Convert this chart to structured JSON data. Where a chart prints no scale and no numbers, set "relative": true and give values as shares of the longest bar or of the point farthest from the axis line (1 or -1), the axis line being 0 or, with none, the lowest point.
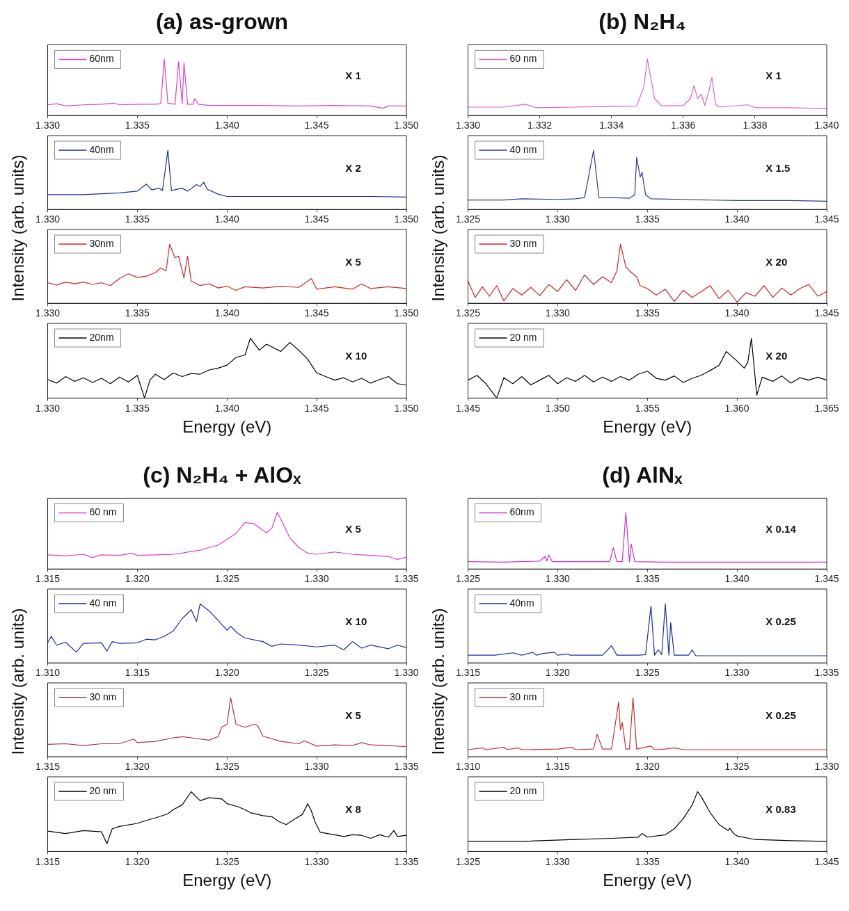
{
  "chart_data": [
    {
      "type": "line",
      "title": "(a) as-grown",
      "relative": true,
      "legend": "top left",
      "tick_labels": "x",
      "annotations": [
        "X 1"
      ],
      "xlim": [
        1.33,
        1.35
      ],
      "xticks": [
        {
          "value": 1.33,
          "label": "1.330"
        },
        {
          "value": 1.335,
          "label": "1.335"
        },
        {
          "value": 1.34,
          "label": "1.340"
        },
        {
          "value": 1.345,
          "label": "1.345"
        },
        {
          "value": 1.35,
          "label": "1.350"
        }
      ],
      "series": [
        {
          "name": "60nm",
          "color": "#e040d0",
          "x": [
            1.33,
            1.3305,
            1.331,
            1.332,
            1.333,
            1.3337,
            1.334,
            1.335,
            1.336,
            1.3363,
            1.3365,
            1.3367,
            1.3371,
            1.3373,
            1.3375,
            1.3376,
            1.3378,
            1.3381,
            1.3382,
            1.3384,
            1.339,
            1.34,
            1.342,
            1.344,
            1.346,
            1.348,
            1.3487,
            1.349,
            1.35
          ],
          "values": [
            0.19,
            0.21,
            0.17,
            0.19,
            0.2,
            0.22,
            0.19,
            0.2,
            0.2,
            0.21,
            1.0,
            0.22,
            0.2,
            0.95,
            0.21,
            0.93,
            0.2,
            0.2,
            0.3,
            0.2,
            0.18,
            0.18,
            0.18,
            0.17,
            0.18,
            0.17,
            0.13,
            0.17,
            0.17
          ]
        }
      ]
    },
    {
      "type": "line",
      "ylabel": "Intensity (arb. units)",
      "relative": true,
      "legend": "top left",
      "tick_labels": "x",
      "annotations": [
        "X 2"
      ],
      "xlim": [
        1.33,
        1.35
      ],
      "xticks": [
        {
          "value": 1.33,
          "label": "1.330"
        },
        {
          "value": 1.335,
          "label": "1.335"
        },
        {
          "value": 1.34,
          "label": "1.340"
        },
        {
          "value": 1.345,
          "label": "1.345"
        },
        {
          "value": 1.35,
          "label": "1.350"
        }
      ],
      "series": [
        {
          "name": "40nm",
          "color": "#1c2a9c",
          "x": [
            1.33,
            1.332,
            1.334,
            1.335,
            1.3355,
            1.3358,
            1.3362,
            1.3364,
            1.3367,
            1.3369,
            1.3375,
            1.3378,
            1.3383,
            1.3385,
            1.3387,
            1.3389,
            1.3395,
            1.34,
            1.342,
            1.345,
            1.348,
            1.35
          ],
          "values": [
            0.25,
            0.25,
            0.28,
            0.31,
            0.43,
            0.33,
            0.36,
            0.32,
            1.0,
            0.32,
            0.36,
            0.31,
            0.42,
            0.39,
            0.46,
            0.34,
            0.26,
            0.22,
            0.22,
            0.22,
            0.22,
            0.21
          ]
        }
      ]
    },
    {
      "type": "line",
      "relative": true,
      "legend": "top left",
      "tick_labels": "x",
      "annotations": [
        "X 5"
      ],
      "xlim": [
        1.33,
        1.35
      ],
      "xticks": [
        {
          "value": 1.33,
          "label": "1.330"
        },
        {
          "value": 1.335,
          "label": "1.335"
        },
        {
          "value": 1.34,
          "label": "1.340"
        },
        {
          "value": 1.345,
          "label": "1.345"
        },
        {
          "value": 1.35,
          "label": "1.350"
        }
      ],
      "series": [
        {
          "name": "30nm",
          "color": "#d02828",
          "x": [
            1.33,
            1.3305,
            1.331,
            1.3315,
            1.332,
            1.3325,
            1.333,
            1.3335,
            1.334,
            1.3345,
            1.335,
            1.3355,
            1.336,
            1.3363,
            1.3366,
            1.3368,
            1.3371,
            1.3373,
            1.3375,
            1.3376,
            1.3378,
            1.338,
            1.3385,
            1.339,
            1.3395,
            1.34,
            1.3405,
            1.341,
            1.342,
            1.343,
            1.344,
            1.3447,
            1.345,
            1.346,
            1.347,
            1.3475,
            1.348,
            1.349,
            1.35
          ],
          "values": [
            0.35,
            0.31,
            0.36,
            0.33,
            0.36,
            0.32,
            0.35,
            0.3,
            0.42,
            0.5,
            0.44,
            0.46,
            0.52,
            0.6,
            0.55,
            1.0,
            0.77,
            0.8,
            0.55,
            0.43,
            0.8,
            0.38,
            0.3,
            0.33,
            0.26,
            0.29,
            0.22,
            0.28,
            0.26,
            0.29,
            0.27,
            0.42,
            0.24,
            0.28,
            0.24,
            0.33,
            0.25,
            0.28,
            0.25
          ]
        }
      ]
    },
    {
      "type": "line",
      "xlabel": "Energy (eV)",
      "relative": true,
      "legend": "top left",
      "tick_labels": "x",
      "annotations": [
        "X 10"
      ],
      "xlim": [
        1.33,
        1.35
      ],
      "xticks": [
        {
          "value": 1.33,
          "label": "1.330"
        },
        {
          "value": 1.335,
          "label": "1.335"
        },
        {
          "value": 1.34,
          "label": "1.340"
        },
        {
          "value": 1.345,
          "label": "1.345"
        },
        {
          "value": 1.35,
          "label": "1.350"
        }
      ],
      "series": [
        {
          "name": "20nm",
          "color": "#000000",
          "x": [
            1.33,
            1.3305,
            1.331,
            1.3315,
            1.332,
            1.3325,
            1.333,
            1.3335,
            1.334,
            1.3345,
            1.335,
            1.3354,
            1.3357,
            1.336,
            1.3365,
            1.337,
            1.3375,
            1.338,
            1.3385,
            1.339,
            1.3395,
            1.34,
            1.3405,
            1.341,
            1.3413,
            1.3418,
            1.3422,
            1.343,
            1.3435,
            1.344,
            1.3445,
            1.345,
            1.3455,
            1.346,
            1.3465,
            1.347,
            1.3475,
            1.348,
            1.3485,
            1.349,
            1.3495,
            1.35
          ],
          "values": [
            0.31,
            0.25,
            0.36,
            0.28,
            0.34,
            0.26,
            0.33,
            0.24,
            0.35,
            0.27,
            0.38,
            0.0,
            0.3,
            0.4,
            0.31,
            0.42,
            0.36,
            0.41,
            0.4,
            0.47,
            0.5,
            0.55,
            0.68,
            0.72,
            1.0,
            0.8,
            0.9,
            0.78,
            0.93,
            0.8,
            0.65,
            0.42,
            0.36,
            0.3,
            0.34,
            0.27,
            0.33,
            0.25,
            0.31,
            0.36,
            0.24,
            0.22
          ]
        }
      ]
    },
    {
      "type": "line",
      "title": "(b) N₂H₄",
      "relative": true,
      "legend": "top left",
      "tick_labels": "x",
      "annotations": [
        "X 1"
      ],
      "xlim": [
        1.33,
        1.34
      ],
      "xticks": [
        {
          "value": 1.33,
          "label": "1.330"
        },
        {
          "value": 1.332,
          "label": "1.332"
        },
        {
          "value": 1.334,
          "label": "1.334"
        },
        {
          "value": 1.336,
          "label": "1.336"
        },
        {
          "value": 1.338,
          "label": "1.338"
        },
        {
          "value": 1.34,
          "label": "1.340"
        }
      ],
      "series": [
        {
          "name": "60 nm",
          "color": "#e060c8",
          "x": [
            1.33,
            1.331,
            1.3316,
            1.3319,
            1.333,
            1.334,
            1.3347,
            1.3349,
            1.335,
            1.3352,
            1.3354,
            1.336,
            1.3362,
            1.3363,
            1.3364,
            1.3365,
            1.3366,
            1.3367,
            1.3368,
            1.3369,
            1.337,
            1.3378,
            1.338,
            1.339,
            1.34
          ],
          "values": [
            0.15,
            0.15,
            0.2,
            0.14,
            0.15,
            0.16,
            0.17,
            0.5,
            1.0,
            0.3,
            0.17,
            0.18,
            0.3,
            0.53,
            0.3,
            0.38,
            0.18,
            0.4,
            0.67,
            0.2,
            0.15,
            0.19,
            0.14,
            0.14,
            0.12
          ]
        }
      ]
    },
    {
      "type": "line",
      "ylabel": "Intensity (arb. units)",
      "relative": true,
      "legend": "top left",
      "tick_labels": "x",
      "annotations": [
        "X 1.5"
      ],
      "xlim": [
        1.325,
        1.345
      ],
      "xticks": [
        {
          "value": 1.325,
          "label": "1.325"
        },
        {
          "value": 1.33,
          "label": "1.330"
        },
        {
          "value": 1.335,
          "label": "1.335"
        },
        {
          "value": 1.34,
          "label": "1.340"
        },
        {
          "value": 1.345,
          "label": "1.345"
        }
      ],
      "series": [
        {
          "name": "40 nm",
          "color": "#2a3a8c",
          "x": [
            1.325,
            1.327,
            1.328,
            1.33,
            1.331,
            1.3315,
            1.332,
            1.3323,
            1.333,
            1.334,
            1.3343,
            1.3344,
            1.3346,
            1.3347,
            1.3349,
            1.3352,
            1.337,
            1.34,
            1.343,
            1.345
          ],
          "values": [
            0.16,
            0.16,
            0.18,
            0.17,
            0.18,
            0.2,
            1.0,
            0.2,
            0.2,
            0.19,
            0.25,
            0.88,
            0.55,
            0.63,
            0.25,
            0.18,
            0.17,
            0.15,
            0.15,
            0.14
          ]
        }
      ]
    },
    {
      "type": "line",
      "relative": true,
      "legend": "top left",
      "tick_labels": "x",
      "annotations": [
        "X 20"
      ],
      "xlim": [
        1.325,
        1.345
      ],
      "xticks": [
        {
          "value": 1.325,
          "label": "1.325"
        },
        {
          "value": 1.33,
          "label": "1.330"
        },
        {
          "value": 1.335,
          "label": "1.335"
        },
        {
          "value": 1.34,
          "label": "1.340"
        },
        {
          "value": 1.345,
          "label": "1.345"
        }
      ],
      "series": [
        {
          "name": "30 nm",
          "color": "#d42020",
          "x": [
            1.325,
            1.3254,
            1.3258,
            1.3262,
            1.3266,
            1.327,
            1.3275,
            1.328,
            1.3285,
            1.329,
            1.3295,
            1.33,
            1.3305,
            1.331,
            1.3315,
            1.332,
            1.3325,
            1.333,
            1.3333,
            1.3335,
            1.3338,
            1.334,
            1.3344,
            1.3346,
            1.335,
            1.3355,
            1.336,
            1.3365,
            1.337,
            1.3375,
            1.338,
            1.3385,
            1.339,
            1.3395,
            1.34,
            1.3405,
            1.341,
            1.3415,
            1.342,
            1.3425,
            1.343,
            1.3435,
            1.344,
            1.3445,
            1.345
          ],
          "values": [
            0.38,
            0.1,
            0.28,
            0.12,
            0.3,
            0.04,
            0.25,
            0.14,
            0.27,
            0.13,
            0.32,
            0.2,
            0.4,
            0.22,
            0.48,
            0.32,
            0.45,
            0.35,
            0.55,
            1.0,
            0.62,
            0.55,
            0.45,
            0.3,
            0.25,
            0.14,
            0.24,
            0.03,
            0.22,
            0.1,
            0.2,
            0.3,
            0.08,
            0.22,
            0.02,
            0.18,
            0.12,
            0.3,
            0.1,
            0.26,
            0.14,
            0.25,
            0.32,
            0.12,
            0.2
          ]
        }
      ]
    },
    {
      "type": "line",
      "xlabel": "Energy (eV)",
      "relative": true,
      "legend": "top left",
      "tick_labels": "x",
      "annotations": [
        "X 20"
      ],
      "xlim": [
        1.345,
        1.365
      ],
      "xticks": [
        {
          "value": 1.345,
          "label": "1.345"
        },
        {
          "value": 1.35,
          "label": "1.350"
        },
        {
          "value": 1.355,
          "label": "1.355"
        },
        {
          "value": 1.36,
          "label": "1.360"
        },
        {
          "value": 1.365,
          "label": "1.365"
        }
      ],
      "series": [
        {
          "name": "20 nm",
          "color": "#000000",
          "x": [
            1.345,
            1.3455,
            1.346,
            1.3466,
            1.347,
            1.3475,
            1.348,
            1.3485,
            1.349,
            1.3495,
            1.35,
            1.3505,
            1.351,
            1.3515,
            1.352,
            1.3525,
            1.353,
            1.3535,
            1.354,
            1.3545,
            1.355,
            1.3555,
            1.356,
            1.3565,
            1.357,
            1.3575,
            1.358,
            1.3585,
            1.359,
            1.3594,
            1.36,
            1.3604,
            1.3606,
            1.3608,
            1.3611,
            1.3614,
            1.362,
            1.3625,
            1.363,
            1.3635,
            1.364,
            1.3645,
            1.365
          ],
          "values": [
            0.3,
            0.38,
            0.24,
            0.0,
            0.34,
            0.24,
            0.36,
            0.22,
            0.3,
            0.38,
            0.24,
            0.34,
            0.28,
            0.38,
            0.27,
            0.35,
            0.28,
            0.36,
            0.3,
            0.4,
            0.45,
            0.33,
            0.3,
            0.37,
            0.26,
            0.33,
            0.38,
            0.46,
            0.55,
            0.78,
            0.62,
            0.5,
            0.6,
            1.0,
            0.05,
            0.35,
            0.28,
            0.37,
            0.25,
            0.34,
            0.3,
            0.35,
            0.3
          ]
        }
      ]
    },
    {
      "type": "line",
      "title": "(c) N₂H₄ + AlOₓ",
      "relative": true,
      "legend": "top left",
      "tick_labels": "x",
      "annotations": [
        "X 5"
      ],
      "xlim": [
        1.315,
        1.335
      ],
      "xticks": [
        {
          "value": 1.315,
          "label": "1.315"
        },
        {
          "value": 1.32,
          "label": "1.320"
        },
        {
          "value": 1.325,
          "label": "1.325"
        },
        {
          "value": 1.33,
          "label": "1.330"
        },
        {
          "value": 1.335,
          "label": "1.335"
        }
      ],
      "series": [
        {
          "name": "60 nm",
          "color": "#e040c8",
          "x": [
            1.315,
            1.316,
            1.317,
            1.3175,
            1.318,
            1.319,
            1.3197,
            1.32,
            1.321,
            1.322,
            1.3225,
            1.323,
            1.3235,
            1.324,
            1.3245,
            1.325,
            1.3255,
            1.326,
            1.3265,
            1.327,
            1.3272,
            1.3275,
            1.3278,
            1.328,
            1.3285,
            1.329,
            1.3295,
            1.33,
            1.331,
            1.332,
            1.333,
            1.334,
            1.3345,
            1.335
          ],
          "values": [
            0.25,
            0.23,
            0.26,
            0.2,
            0.25,
            0.24,
            0.28,
            0.24,
            0.25,
            0.26,
            0.28,
            0.31,
            0.33,
            0.38,
            0.42,
            0.52,
            0.63,
            0.82,
            0.8,
            0.68,
            0.64,
            0.72,
            1.0,
            0.88,
            0.55,
            0.38,
            0.28,
            0.26,
            0.3,
            0.26,
            0.24,
            0.22,
            0.17,
            0.21
          ]
        }
      ]
    },
    {
      "type": "line",
      "ylabel": "Intensity (arb. units)",
      "relative": true,
      "legend": "top left",
      "tick_labels": "x",
      "annotations": [
        "X 10"
      ],
      "xlim": [
        1.31,
        1.33
      ],
      "xticks": [
        {
          "value": 1.31,
          "label": "1.310"
        },
        {
          "value": 1.315,
          "label": "1.315"
        },
        {
          "value": 1.32,
          "label": "1.320"
        },
        {
          "value": 1.325,
          "label": "1.325"
        },
        {
          "value": 1.33,
          "label": "1.330"
        }
      ],
      "series": [
        {
          "name": "40 nm",
          "color": "#1c2aa8",
          "x": [
            1.31,
            1.3102,
            1.3105,
            1.311,
            1.3116,
            1.312,
            1.313,
            1.3133,
            1.3136,
            1.314,
            1.315,
            1.3155,
            1.316,
            1.3165,
            1.317,
            1.3175,
            1.318,
            1.3183,
            1.3185,
            1.319,
            1.3195,
            1.32,
            1.3202,
            1.3206,
            1.321,
            1.322,
            1.3225,
            1.323,
            1.324,
            1.325,
            1.326,
            1.3265,
            1.327,
            1.3275,
            1.328,
            1.329,
            1.3295,
            1.33
          ],
          "values": [
            0.34,
            0.45,
            0.3,
            0.35,
            0.18,
            0.33,
            0.34,
            0.2,
            0.36,
            0.33,
            0.34,
            0.4,
            0.39,
            0.45,
            0.54,
            0.75,
            0.9,
            0.7,
            1.0,
            0.88,
            0.72,
            0.55,
            0.62,
            0.5,
            0.42,
            0.36,
            0.28,
            0.32,
            0.3,
            0.27,
            0.3,
            0.22,
            0.36,
            0.25,
            0.3,
            0.24,
            0.3,
            0.26
          ]
        }
      ]
    },
    {
      "type": "line",
      "relative": true,
      "legend": "top left",
      "tick_labels": "x",
      "annotations": [
        "X 5"
      ],
      "xlim": [
        1.315,
        1.335
      ],
      "xticks": [
        {
          "value": 1.315,
          "label": "1.315"
        },
        {
          "value": 1.32,
          "label": "1.320"
        },
        {
          "value": 1.325,
          "label": "1.325"
        },
        {
          "value": 1.33,
          "label": "1.330"
        },
        {
          "value": 1.335,
          "label": "1.335"
        }
      ],
      "series": [
        {
          "name": "30 nm",
          "color": "#b03050",
          "x": [
            1.315,
            1.316,
            1.317,
            1.318,
            1.319,
            1.3198,
            1.32,
            1.321,
            1.322,
            1.3225,
            1.323,
            1.324,
            1.3245,
            1.3247,
            1.325,
            1.3252,
            1.3255,
            1.326,
            1.3265,
            1.3267,
            1.327,
            1.328,
            1.329,
            1.3293,
            1.33,
            1.331,
            1.332,
            1.3325,
            1.333,
            1.334,
            1.335
          ],
          "values": [
            0.21,
            0.22,
            0.19,
            0.22,
            0.22,
            0.3,
            0.24,
            0.26,
            0.32,
            0.34,
            0.32,
            0.28,
            0.34,
            0.5,
            0.55,
            1.0,
            0.55,
            0.5,
            0.55,
            0.53,
            0.35,
            0.26,
            0.22,
            0.27,
            0.18,
            0.2,
            0.19,
            0.24,
            0.2,
            0.19,
            0.17
          ]
        }
      ]
    },
    {
      "type": "line",
      "xlabel": "Energy (eV)",
      "relative": true,
      "legend": "top left",
      "tick_labels": "x",
      "annotations": [
        "X 8"
      ],
      "xlim": [
        1.315,
        1.335
      ],
      "xticks": [
        {
          "value": 1.315,
          "label": "1.315"
        },
        {
          "value": 1.32,
          "label": "1.320"
        },
        {
          "value": 1.325,
          "label": "1.325"
        },
        {
          "value": 1.33,
          "label": "1.330"
        },
        {
          "value": 1.335,
          "label": "1.335"
        }
      ],
      "series": [
        {
          "name": "20 nm",
          "color": "#000000",
          "x": [
            1.315,
            1.316,
            1.317,
            1.318,
            1.3183,
            1.3186,
            1.319,
            1.32,
            1.3205,
            1.321,
            1.3217,
            1.322,
            1.3225,
            1.323,
            1.3235,
            1.324,
            1.3247,
            1.325,
            1.3256,
            1.326,
            1.3263,
            1.327,
            1.3275,
            1.3279,
            1.3283,
            1.3288,
            1.3292,
            1.3295,
            1.3297,
            1.3299,
            1.3302,
            1.331,
            1.3315,
            1.332,
            1.3325,
            1.333,
            1.3335,
            1.334,
            1.3343,
            1.3345,
            1.335
          ],
          "values": [
            0.34,
            0.3,
            0.35,
            0.33,
            0.13,
            0.38,
            0.42,
            0.47,
            0.52,
            0.56,
            0.63,
            0.7,
            0.78,
            1.0,
            0.85,
            0.9,
            0.88,
            0.8,
            0.75,
            0.7,
            0.65,
            0.6,
            0.58,
            0.5,
            0.45,
            0.55,
            0.62,
            0.8,
            0.68,
            0.5,
            0.32,
            0.28,
            0.25,
            0.28,
            0.27,
            0.22,
            0.28,
            0.24,
            0.35,
            0.25,
            0.27
          ]
        }
      ]
    },
    {
      "type": "line",
      "title": "(d) AlNₓ",
      "relative": true,
      "legend": "top left",
      "tick_labels": "x",
      "annotations": [
        "X 0.14"
      ],
      "xlim": [
        1.325,
        1.345
      ],
      "xticks": [
        {
          "value": 1.325,
          "label": "1.325"
        },
        {
          "value": 1.33,
          "label": "1.330"
        },
        {
          "value": 1.335,
          "label": "1.335"
        },
        {
          "value": 1.34,
          "label": "1.340"
        },
        {
          "value": 1.345,
          "label": "1.345"
        }
      ],
      "series": [
        {
          "name": "60nm",
          "color": "#d030d0",
          "x": [
            1.325,
            1.327,
            1.329,
            1.3293,
            1.3294,
            1.3295,
            1.3297,
            1.331,
            1.3329,
            1.3331,
            1.3333,
            1.3336,
            1.3338,
            1.334,
            1.3341,
            1.3343,
            1.336,
            1.34,
            1.345
          ],
          "values": [
            0.13,
            0.12,
            0.14,
            0.22,
            0.14,
            0.25,
            0.13,
            0.13,
            0.13,
            0.38,
            0.13,
            0.13,
            1.0,
            0.13,
            0.44,
            0.13,
            0.12,
            0.12,
            0.12
          ]
        }
      ]
    },
    {
      "type": "line",
      "ylabel": "Intensity (arb. units)",
      "relative": true,
      "legend": "top left",
      "tick_labels": "x",
      "annotations": [
        "X 0.25"
      ],
      "xlim": [
        1.315,
        1.335
      ],
      "xticks": [
        {
          "value": 1.315,
          "label": "1.315"
        },
        {
          "value": 1.32,
          "label": "1.320"
        },
        {
          "value": 1.325,
          "label": "1.325"
        },
        {
          "value": 1.33,
          "label": "1.330"
        },
        {
          "value": 1.335,
          "label": "1.335"
        }
      ],
      "series": [
        {
          "name": "40nm",
          "color": "#1c2aa8",
          "x": [
            1.315,
            1.3165,
            1.3175,
            1.318,
            1.3186,
            1.3188,
            1.3192,
            1.3198,
            1.32,
            1.3205,
            1.3207,
            1.3225,
            1.323,
            1.3233,
            1.3245,
            1.3249,
            1.3252,
            1.3254,
            1.3256,
            1.3258,
            1.326,
            1.3262,
            1.3263,
            1.3265,
            1.3273,
            1.3275,
            1.3277,
            1.33,
            1.333,
            1.335
          ],
          "values": [
            0.13,
            0.13,
            0.17,
            0.13,
            0.18,
            0.13,
            0.16,
            0.18,
            0.13,
            0.15,
            0.13,
            0.13,
            0.29,
            0.13,
            0.13,
            0.14,
            0.96,
            0.13,
            0.22,
            0.14,
            1.0,
            0.13,
            0.68,
            0.13,
            0.13,
            0.22,
            0.12,
            0.12,
            0.12,
            0.12
          ]
        }
      ]
    },
    {
      "type": "line",
      "relative": true,
      "legend": "top left",
      "tick_labels": "x",
      "annotations": [
        "X 0.25"
      ],
      "xlim": [
        1.31,
        1.33
      ],
      "xticks": [
        {
          "value": 1.31,
          "label": "1.310"
        },
        {
          "value": 1.315,
          "label": "1.315"
        },
        {
          "value": 1.32,
          "label": "1.320"
        },
        {
          "value": 1.325,
          "label": "1.325"
        },
        {
          "value": 1.33,
          "label": "1.330"
        }
      ],
      "series": [
        {
          "name": "30 nm",
          "color": "#c83030",
          "x": [
            1.31,
            1.3108,
            1.311,
            1.312,
            1.3122,
            1.3128,
            1.313,
            1.315,
            1.3158,
            1.316,
            1.317,
            1.3172,
            1.3175,
            1.318,
            1.3184,
            1.3185,
            1.3186,
            1.3188,
            1.319,
            1.3192,
            1.3194,
            1.3202,
            1.3204,
            1.321,
            1.3215,
            1.322,
            1.325,
            1.33
          ],
          "values": [
            0.12,
            0.15,
            0.12,
            0.16,
            0.12,
            0.15,
            0.12,
            0.13,
            0.16,
            0.12,
            0.13,
            0.38,
            0.13,
            0.13,
            0.93,
            0.45,
            0.58,
            0.13,
            0.13,
            1.0,
            0.13,
            0.18,
            0.12,
            0.13,
            0.15,
            0.12,
            0.12,
            0.12
          ]
        }
      ]
    },
    {
      "type": "line",
      "xlabel": "Energy (eV)",
      "relative": true,
      "legend": "top left",
      "tick_labels": "x",
      "annotations": [
        "X 0.83"
      ],
      "xlim": [
        1.325,
        1.345
      ],
      "xticks": [
        {
          "value": 1.325,
          "label": "1.325"
        },
        {
          "value": 1.33,
          "label": "1.330"
        },
        {
          "value": 1.335,
          "label": "1.335"
        },
        {
          "value": 1.34,
          "label": "1.340"
        },
        {
          "value": 1.345,
          "label": "1.345"
        }
      ],
      "series": [
        {
          "name": "20 nm",
          "color": "#000000",
          "x": [
            1.325,
            1.328,
            1.331,
            1.333,
            1.3345,
            1.3347,
            1.335,
            1.336,
            1.3365,
            1.337,
            1.3375,
            1.3378,
            1.338,
            1.3385,
            1.339,
            1.3395,
            1.3396,
            1.3398,
            1.34,
            1.341,
            1.343,
            1.345
          ],
          "values": [
            0.17,
            0.17,
            0.2,
            0.22,
            0.24,
            0.3,
            0.24,
            0.28,
            0.38,
            0.55,
            0.78,
            1.0,
            0.92,
            0.65,
            0.45,
            0.35,
            0.39,
            0.3,
            0.26,
            0.2,
            0.18,
            0.17
          ]
        }
      ]
    }
  ]
}
